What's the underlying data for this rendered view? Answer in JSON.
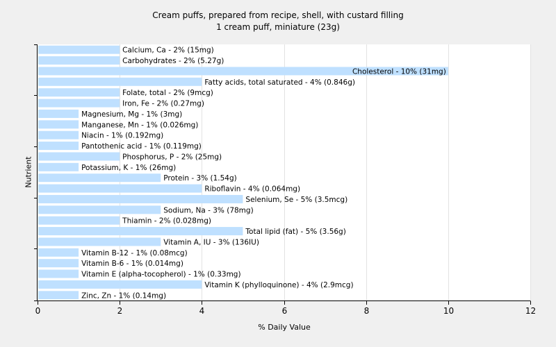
{
  "chart_data": {
    "type": "bar",
    "orientation": "horizontal",
    "title": "Cream puffs, prepared from recipe, shell, with custard filling",
    "subtitle": "1 cream puff, miniature (23g)",
    "xlabel": "% Daily Value",
    "ylabel": "Nutrient",
    "xlim": [
      0,
      12
    ],
    "xticks": [
      0,
      2,
      4,
      6,
      8,
      10,
      12
    ],
    "grid": true,
    "legend": "none",
    "colors": {
      "bar": "#bfe0ff",
      "background": "#f0f0f0",
      "plot_background": "#ffffff",
      "grid": "#e2e2e2",
      "axis": "#000000"
    },
    "categories": [
      "Calcium, Ca",
      "Carbohydrates",
      "Cholesterol",
      "Fatty acids, total saturated",
      "Folate, total",
      "Iron, Fe",
      "Magnesium, Mg",
      "Manganese, Mn",
      "Niacin",
      "Pantothenic acid",
      "Phosphorus, P",
      "Potassium, K",
      "Protein",
      "Riboflavin",
      "Selenium, Se",
      "Sodium, Na",
      "Thiamin",
      "Total lipid (fat)",
      "Vitamin A, IU",
      "Vitamin B-12",
      "Vitamin B-6",
      "Vitamin E (alpha-tocopherol)",
      "Vitamin K (phylloquinone)",
      "Zinc, Zn"
    ],
    "values": [
      2,
      2,
      10,
      4,
      2,
      2,
      1,
      1,
      1,
      1,
      2,
      1,
      3,
      4,
      5,
      3,
      2,
      5,
      3,
      1,
      1,
      1,
      4,
      1
    ],
    "labels": [
      "Calcium, Ca - 2% (15mg)",
      "Carbohydrates - 2% (5.27g)",
      "Cholesterol - 10% (31mg)",
      "Fatty acids, total saturated - 4% (0.846g)",
      "Folate, total - 2% (9mcg)",
      "Iron, Fe - 2% (0.27mg)",
      "Magnesium, Mg - 1% (3mg)",
      "Manganese, Mn - 1% (0.026mg)",
      "Niacin - 1% (0.192mg)",
      "Pantothenic acid - 1% (0.119mg)",
      "Phosphorus, P - 2% (25mg)",
      "Potassium, K - 1% (26mg)",
      "Protein - 3% (1.54g)",
      "Riboflavin - 4% (0.064mg)",
      "Selenium, Se - 5% (3.5mcg)",
      "Sodium, Na - 3% (78mg)",
      "Thiamin - 2% (0.028mg)",
      "Total lipid (fat) - 5% (3.56g)",
      "Vitamin A, IU - 3% (136IU)",
      "Vitamin B-12 - 1% (0.08mcg)",
      "Vitamin B-6 - 1% (0.014mg)",
      "Vitamin E (alpha-tocopherol) - 1% (0.33mg)",
      "Vitamin K (phylloquinone) - 4% (2.9mcg)",
      "Zinc, Zn - 1% (0.14mg)"
    ]
  }
}
